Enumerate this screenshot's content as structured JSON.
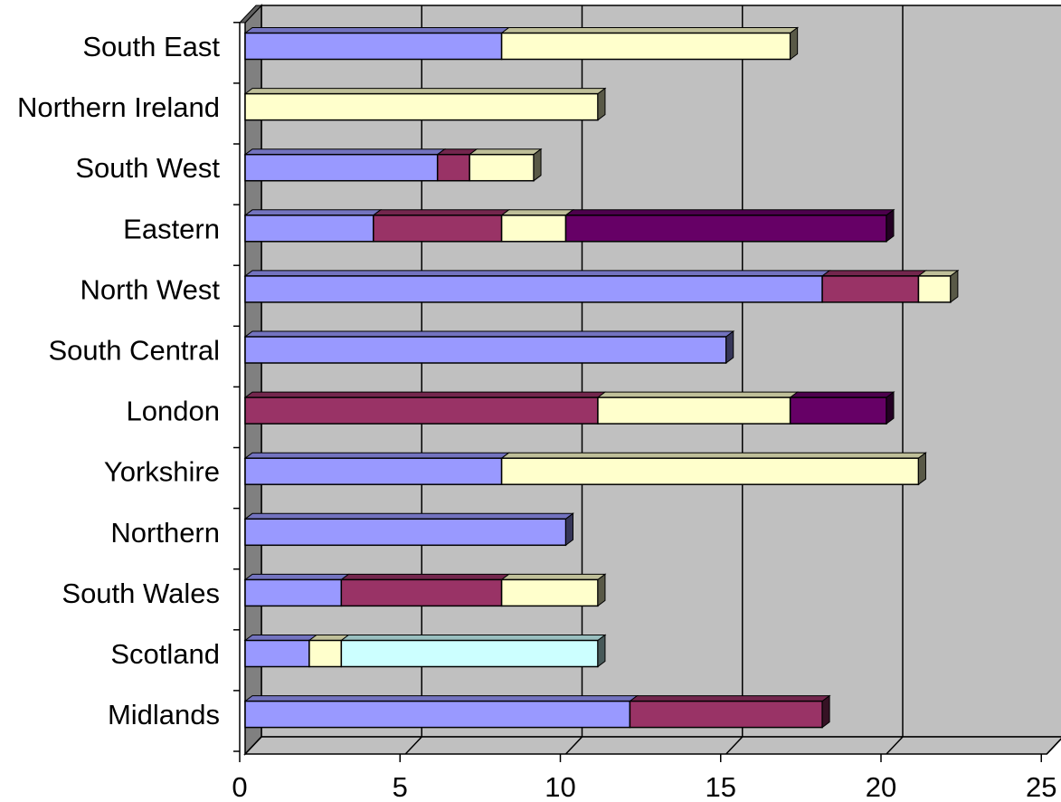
{
  "chart_data": {
    "type": "bar",
    "orientation": "horizontal",
    "stacked": true,
    "three_d": true,
    "title": "",
    "xlabel": "",
    "ylabel": "",
    "xlim": [
      0,
      25
    ],
    "xticks": [
      "0",
      "5",
      "10",
      "15",
      "20",
      "25"
    ],
    "grid": true,
    "legend": "none",
    "plot_background": "#C0C0C0",
    "categories": [
      "Midlands",
      "Scotland",
      "South Wales",
      "Northern",
      "Yorkshire",
      "London",
      "South Central",
      "North West",
      "Eastern",
      "South West",
      "Northern Ireland",
      "South East"
    ],
    "series": [
      {
        "color": "#9999FF",
        "values": [
          12,
          2,
          3,
          10,
          8,
          0,
          15,
          18,
          4,
          6,
          0,
          8
        ]
      },
      {
        "color": "#993366",
        "values": [
          6,
          0,
          5,
          0,
          0,
          11,
          0,
          3,
          4,
          1,
          0,
          0
        ]
      },
      {
        "color": "#FFFFCC",
        "values": [
          0,
          1,
          3,
          0,
          13,
          6,
          0,
          1,
          2,
          2,
          11,
          9
        ]
      },
      {
        "color": "#CCFFFF",
        "values": [
          0,
          8,
          0,
          0,
          0,
          0,
          0,
          0,
          0,
          0,
          0,
          0
        ]
      },
      {
        "color": "#660066",
        "values": [
          0,
          0,
          0,
          0,
          0,
          3,
          0,
          0,
          10,
          0,
          0,
          0
        ]
      }
    ]
  }
}
